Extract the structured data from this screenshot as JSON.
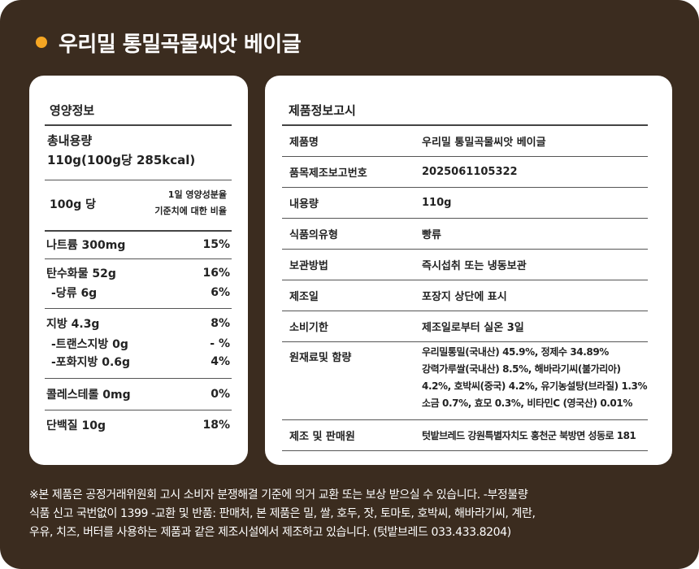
{
  "title": "우리밀 통밀곡물씨앗 베이글",
  "colors": {
    "background": "#3b2c1f",
    "accent_dot": "#f5a623",
    "card": "#ffffff"
  },
  "nutrition": {
    "heading": "영양정보",
    "total_label": "총내용량",
    "total_value": "110g(100g당 285kcal)",
    "per_label": "100g 당",
    "dv_note_line1": "1일 영양성분율",
    "dv_note_line2": "기준치에 대한 비율",
    "rows": [
      {
        "name": "나트륨 300mg",
        "pct": "15%"
      },
      {
        "name": "탄수화물 52g",
        "pct": "16%"
      },
      {
        "name": "-당류  6g",
        "pct": "6%"
      },
      {
        "name": "지방  4.3g",
        "pct": "8%"
      },
      {
        "name": "-트랜스지방 0g",
        "pct": "- %"
      },
      {
        "name": "-포화지방 0.6g",
        "pct": "4%"
      },
      {
        "name": "콜레스테롤  0mg",
        "pct": "0%"
      },
      {
        "name": "단백질 10g",
        "pct": "18%"
      }
    ]
  },
  "product_info": {
    "heading": "제품정보고시",
    "rows": [
      {
        "label": "제품명",
        "value": "우리밀 통밀곡물씨앗 베이글"
      },
      {
        "label": "품목제조보고번호",
        "value": "2025061105322"
      },
      {
        "label": "내용량",
        "value": "110g"
      },
      {
        "label": "식품의유형",
        "value": "빵류"
      },
      {
        "label": "보관방법",
        "value": "즉시섭취 또는 냉동보관"
      },
      {
        "label": "제조일",
        "value": "포장지 상단에 표시"
      },
      {
        "label": "소비기한",
        "value": "제조일로부터 실온 3일"
      },
      {
        "label": "원재료및 함량",
        "lines": [
          "우리밀통밀(국내산) 45.9%, 정제수 34.89%",
          "강력가루쌀(국내산) 8.5%, 해바라기씨(불가리아)",
          "4.2%, 호박씨(중국) 4.2%, 유기농설탕(브라질) 1.3%",
          "소금 0.7%, 효모 0.3%, 비타민C (영국산) 0.01%"
        ]
      },
      {
        "label": "제조 및 판매원",
        "value": "텃밭브레드  강원특별자치도 홍천군 북방면 성동로 181"
      }
    ]
  },
  "footnote": {
    "lines": [
      "※본 제품은 공정거래위원회 고시 소비자 분쟁해결 기준에 의거 교환 또는 보상 받으실 수 있습니다. -부정불량",
      "식품 신고 국번없이 1399 -교환 및 반품: 판매처, 본 제품은 밀, 쌀, 호두, 잣, 토마토, 호박씨, 해바라기씨, 계란,",
      "우유, 치즈, 버터를 사용하는 제품과 같은 제조시설에서 제조하고 있습니다. (텃밭브레드 033.433.8204)"
    ]
  }
}
